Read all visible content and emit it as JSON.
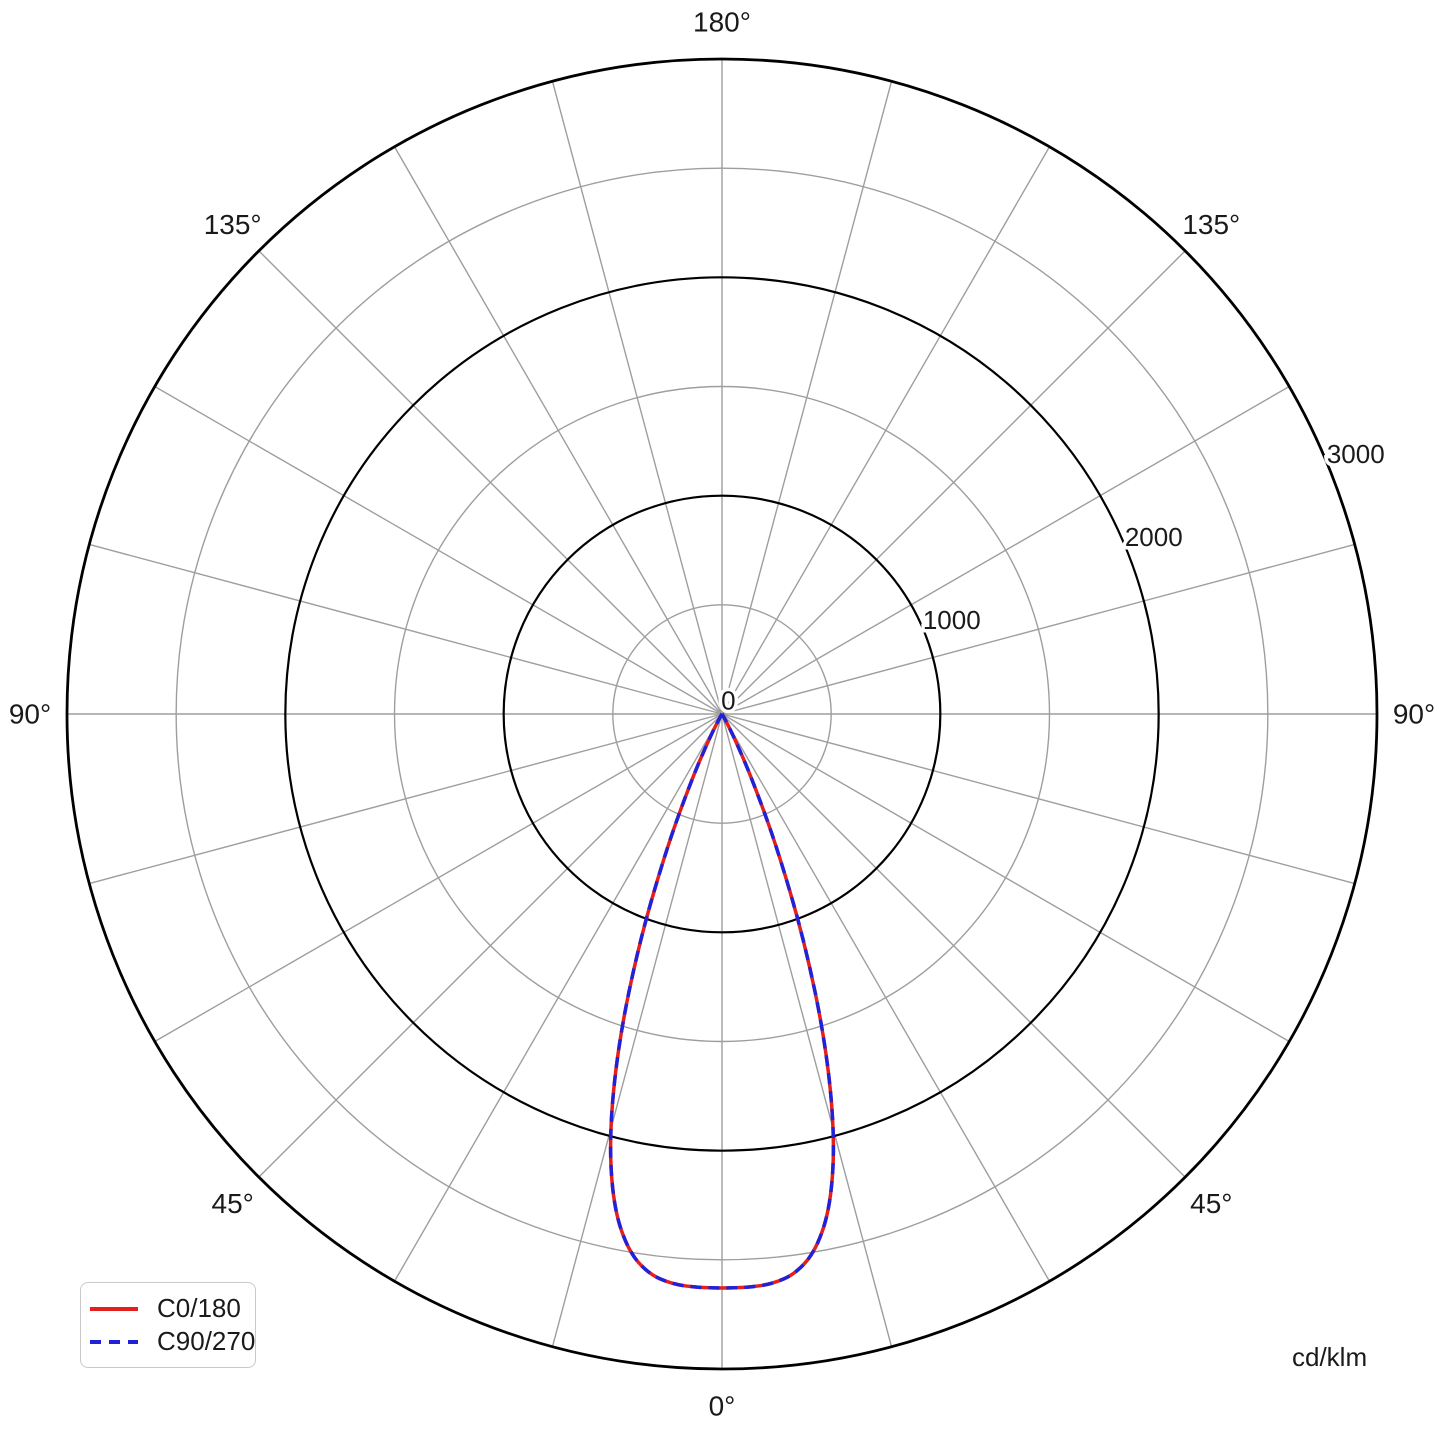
{
  "chart_data": {
    "type": "polar_photometric_line",
    "units_label": "cd/klm",
    "r_axis": {
      "min": 0,
      "max": 3000,
      "tick_labels": [
        "0",
        "1000",
        "2000",
        "3000"
      ],
      "tick_values": [
        0,
        1000,
        2000,
        3000
      ],
      "major_circles": [
        1000,
        2000,
        3000
      ],
      "minor_circles": [
        500,
        1500,
        2500
      ],
      "tick_label_angle_deg": 22.3
    },
    "angle_axis": {
      "zero_position": "bottom",
      "spoke_step_deg": 15,
      "labels": [
        {
          "text": "0°",
          "angle_deg": 0
        },
        {
          "text": "45°",
          "angle_deg": 45
        },
        {
          "text": "45°",
          "angle_deg": -45
        },
        {
          "text": "90°",
          "angle_deg": 90
        },
        {
          "text": "90°",
          "angle_deg": -90
        },
        {
          "text": "135°",
          "angle_deg": 135
        },
        {
          "text": "135°",
          "angle_deg": -135
        },
        {
          "text": "180°",
          "angle_deg": 180
        }
      ]
    },
    "series": [
      {
        "name": "C0/180",
        "color": "#e3201b",
        "style": "solid",
        "angles_deg": [
          -40,
          -37.5,
          -35,
          -32.5,
          -30,
          -27.5,
          -25,
          -22.5,
          -20,
          -17.5,
          -15,
          -12.5,
          -10,
          -7.5,
          -5,
          -2.5,
          0,
          2.5,
          5,
          7.5,
          10,
          12.5,
          15,
          17.5,
          20,
          22.5,
          25,
          27.5,
          30,
          32.5,
          35,
          37.5,
          40
        ],
        "values_cd_klm": [
          0,
          0,
          1,
          6,
          32,
          116,
          313,
          652,
          1101,
          1578,
          1996,
          2303,
          2491,
          2586,
          2621,
          2629,
          2630,
          2629,
          2621,
          2586,
          2491,
          2303,
          1996,
          1578,
          1101,
          652,
          313,
          116,
          32,
          6,
          1,
          0,
          0
        ]
      },
      {
        "name": "C90/270",
        "color": "#2121d8",
        "style": "dashed",
        "angles_deg": [
          -40,
          -37.5,
          -35,
          -32.5,
          -30,
          -27.5,
          -25,
          -22.5,
          -20,
          -17.5,
          -15,
          -12.5,
          -10,
          -7.5,
          -5,
          -2.5,
          0,
          2.5,
          5,
          7.5,
          10,
          12.5,
          15,
          17.5,
          20,
          22.5,
          25,
          27.5,
          30,
          32.5,
          35,
          37.5,
          40
        ],
        "values_cd_klm": [
          0,
          0,
          1,
          6,
          32,
          116,
          313,
          652,
          1101,
          1578,
          1996,
          2303,
          2491,
          2586,
          2621,
          2629,
          2630,
          2629,
          2621,
          2586,
          2491,
          2303,
          1996,
          1578,
          1101,
          652,
          313,
          116,
          32,
          6,
          1,
          0,
          0
        ]
      }
    ],
    "peak_intensity_cd_klm": 2630,
    "grid": {
      "spoke_color": "#9e9e9e",
      "minor_circle_color": "#9e9e9e",
      "major_circle_color": "#000000"
    }
  },
  "legend": {
    "items": [
      {
        "label": "C0/180",
        "color": "#e3201b",
        "style": "solid"
      },
      {
        "label": "C90/270",
        "color": "#2121d8",
        "style": "dashed"
      }
    ]
  },
  "text_color": "#1a1a1a"
}
